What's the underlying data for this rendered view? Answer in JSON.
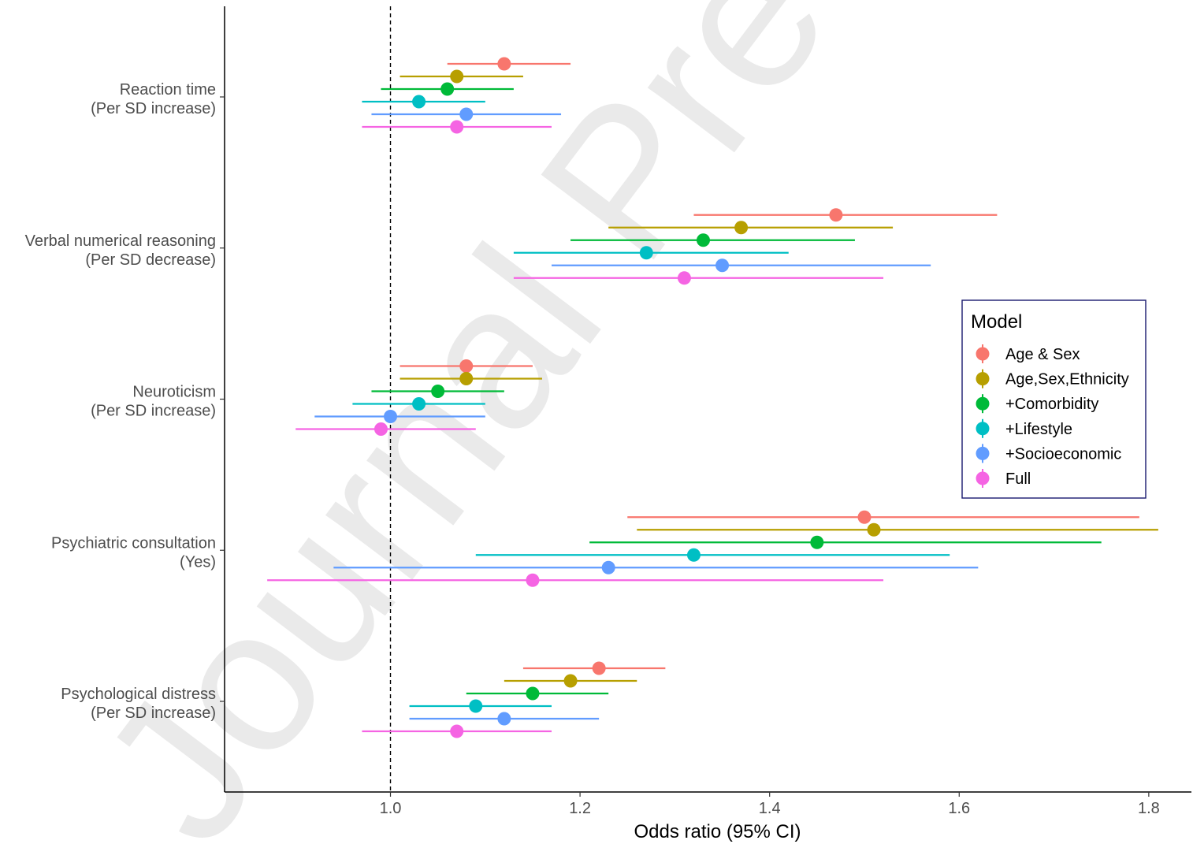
{
  "watermark": "Journal Pre-proof",
  "chart_data": {
    "type": "scatter",
    "subtype": "forest-plot",
    "xlabel": "Odds ratio (95% CI)",
    "xlim": [
      0.825,
      1.845
    ],
    "xticks": [
      "1.0",
      "1.2",
      "1.4",
      "1.6",
      "1.8"
    ],
    "xtick_values": [
      1.0,
      1.2,
      1.4,
      1.6,
      1.8
    ],
    "reference_line": 1.0,
    "grid": false,
    "legend": {
      "title": "Model",
      "placement": "right"
    },
    "categories": [
      {
        "line1": "Reaction time",
        "line2": "(Per SD increase)"
      },
      {
        "line1": "Verbal numerical reasoning",
        "line2": "(Per SD decrease)"
      },
      {
        "line1": "Neuroticism",
        "line2": "(Per SD increase)"
      },
      {
        "line1": "Psychiatric consultation",
        "line2": "(Yes)"
      },
      {
        "line1": "Psychological distress",
        "line2": "(Per SD increase)"
      }
    ],
    "series": [
      {
        "name": "Age & Sex",
        "color": "#F8766D",
        "or": [
          1.12,
          1.47,
          1.08,
          1.5,
          1.22
        ],
        "lo": [
          1.06,
          1.32,
          1.01,
          1.25,
          1.14
        ],
        "hi": [
          1.19,
          1.64,
          1.15,
          1.79,
          1.29
        ]
      },
      {
        "name": "Age,Sex,Ethnicity",
        "color": "#B79F00",
        "or": [
          1.07,
          1.37,
          1.08,
          1.51,
          1.19
        ],
        "lo": [
          1.01,
          1.23,
          1.01,
          1.26,
          1.12
        ],
        "hi": [
          1.14,
          1.53,
          1.16,
          1.81,
          1.26
        ]
      },
      {
        "name": "+Comorbidity",
        "color": "#00BA38",
        "or": [
          1.06,
          1.33,
          1.05,
          1.45,
          1.15
        ],
        "lo": [
          0.99,
          1.19,
          0.98,
          1.21,
          1.08
        ],
        "hi": [
          1.13,
          1.49,
          1.12,
          1.75,
          1.23
        ]
      },
      {
        "name": "+Lifestyle",
        "color": "#00BFC4",
        "or": [
          1.03,
          1.27,
          1.03,
          1.32,
          1.09
        ],
        "lo": [
          0.97,
          1.13,
          0.96,
          1.09,
          1.02
        ],
        "hi": [
          1.1,
          1.42,
          1.1,
          1.59,
          1.17
        ]
      },
      {
        "name": "+Socioeconomic",
        "color": "#619CFF",
        "or": [
          1.08,
          1.35,
          1.0,
          1.23,
          1.12
        ],
        "lo": [
          0.98,
          1.17,
          0.92,
          0.94,
          1.02
        ],
        "hi": [
          1.18,
          1.57,
          1.1,
          1.62,
          1.22
        ]
      },
      {
        "name": "Full",
        "color": "#F564E3",
        "or": [
          1.07,
          1.31,
          0.99,
          1.15,
          1.07
        ],
        "lo": [
          0.97,
          1.13,
          0.9,
          0.87,
          0.97
        ],
        "hi": [
          1.17,
          1.52,
          1.09,
          1.52,
          1.17
        ]
      }
    ]
  }
}
